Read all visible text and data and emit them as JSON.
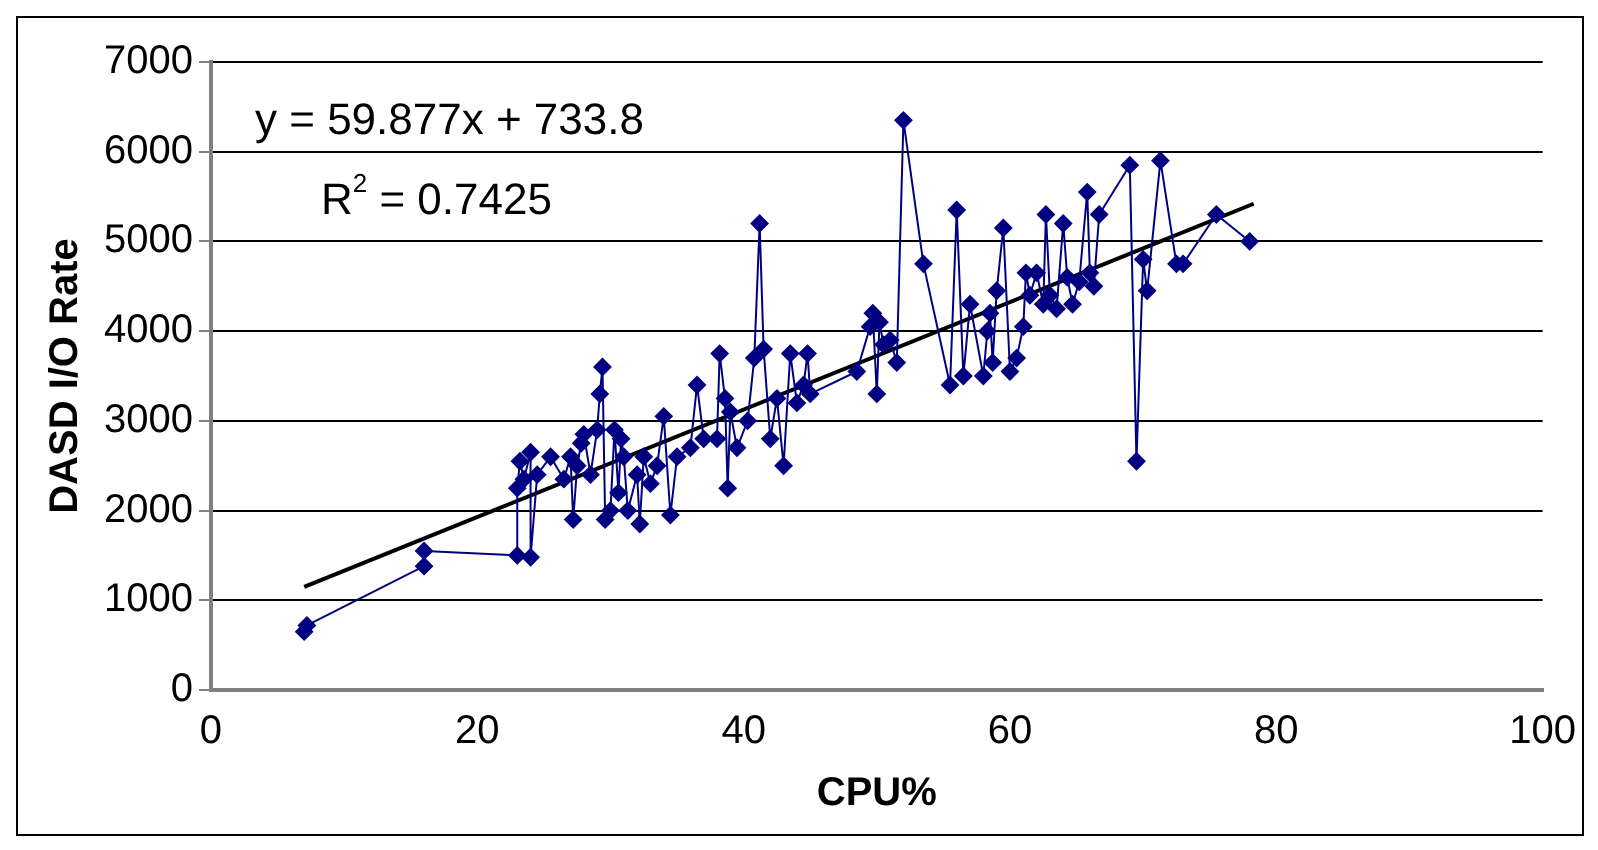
{
  "chart_data": {
    "type": "line",
    "xlabel": "CPU%",
    "ylabel": "DASD I/O Rate",
    "xlim": [
      0,
      100
    ],
    "xticks": [
      0,
      20,
      40,
      60,
      80,
      100
    ],
    "ylim": [
      0,
      7000
    ],
    "yticks": [
      0,
      1000,
      2000,
      3000,
      4000,
      5000,
      6000,
      7000
    ],
    "grid": "y",
    "legend": false,
    "marker": "diamond",
    "annotations": [
      "y = 59.877x + 733.8",
      "R$^{2}$ = 0.7425"
    ],
    "series": [
      {
        "color": "#000080",
        "line_style": "solid",
        "x": [
          7,
          7.2,
          16,
          16,
          23,
          23,
          23.2,
          23.5,
          24,
          24,
          24.5,
          25.5,
          26.5,
          27,
          27.2,
          27.5,
          27.8,
          28,
          28.5,
          29,
          29.2,
          29.4,
          29.6,
          30,
          30.3,
          30.6,
          30.8,
          31,
          31.3,
          32,
          32.2,
          32.5,
          33,
          33.5,
          34,
          34.5,
          35,
          36,
          36.5,
          37,
          38,
          38.2,
          38.6,
          38.8,
          39,
          39.5,
          40.3,
          40.8,
          41.2,
          41.5,
          42,
          42.5,
          43,
          43.5,
          44,
          44.5,
          44.8,
          45,
          48.5,
          49.5,
          49.7,
          50,
          50.2,
          50.5,
          51,
          51.5,
          52,
          53.5,
          55.5,
          56,
          56.5,
          57,
          58,
          58.3,
          58.5,
          58.7,
          59,
          59.5,
          60,
          60.5,
          61,
          61.2,
          61.5,
          62,
          62.5,
          62.7,
          63,
          63.5,
          64,
          64.3,
          64.7,
          65.2,
          65.8,
          66,
          66.3,
          66.7,
          69,
          69.5,
          70,
          70.3,
          71.3,
          72.5,
          73,
          75.5,
          78
        ],
        "values": [
          650,
          720,
          1380,
          1550,
          1500,
          2250,
          2550,
          2350,
          2650,
          1480,
          2400,
          2600,
          2350,
          2600,
          1900,
          2500,
          2750,
          2850,
          2400,
          2900,
          3300,
          3600,
          1900,
          2000,
          2900,
          2200,
          2800,
          2600,
          2000,
          2400,
          1850,
          2600,
          2300,
          2500,
          3050,
          1950,
          2600,
          2700,
          3400,
          2800,
          2800,
          3750,
          3250,
          2250,
          3100,
          2700,
          3000,
          3700,
          5200,
          3800,
          2800,
          3250,
          2500,
          3750,
          3200,
          3400,
          3750,
          3300,
          3550,
          4050,
          4200,
          3300,
          4100,
          3850,
          3900,
          3650,
          6350,
          4750,
          3400,
          5350,
          3500,
          4300,
          3500,
          4000,
          4200,
          3650,
          4450,
          5150,
          3550,
          3700,
          4050,
          4650,
          4400,
          4650,
          4300,
          5300,
          4400,
          4250,
          5200,
          4600,
          4300,
          4550,
          5550,
          4650,
          4500,
          5300,
          5850,
          2550,
          4800,
          4450,
          5900,
          4750,
          4750,
          5300,
          5000
        ]
      },
      {
        "color": "#000000",
        "marker": "none",
        "line_style": "solid",
        "x": [
          7,
          78.3
        ],
        "values": [
          1150,
          5420
        ]
      }
    ]
  }
}
